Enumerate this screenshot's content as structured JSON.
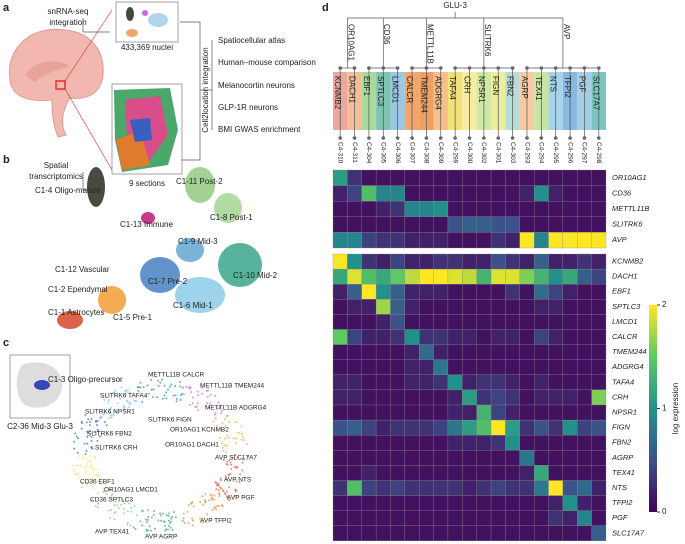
{
  "panel_labels": [
    "a",
    "b",
    "c",
    "d"
  ],
  "panel_a": {
    "snrna_label": [
      "snRNA-seq",
      "integration"
    ],
    "nuclei": "433,369 nuclei",
    "spatial_label": [
      "Spatial",
      "transcriptomics"
    ],
    "sections": "9 sections",
    "integration": "Cell2location integration",
    "outputs": [
      "Spatiocellular atlas",
      "Human–mouse comparison",
      "Melanocortin neurons",
      "GLP-1R neurons",
      "BMI GWAS enrichment"
    ]
  },
  "panel_b": {
    "clusters": [
      "C1-4 Oligo-mature",
      "C1-11 Post-2",
      "C1-13 Immune",
      "C1-8 Post-1",
      "C1-12 Vascular",
      "C1-9 Mid-3",
      "C1-2 Ependymal",
      "C1-10 Mid-2",
      "C1-1 Astrocytes",
      "C1-7 Pre-2",
      "C1-6 Mid-1",
      "C1-5 Pre-1",
      "C1-3 Oligo-precursor"
    ]
  },
  "panel_c": {
    "inset": "C2-36 Mid-3 Glu-3",
    "clusters": [
      "METTL11B CALCR",
      "SLITRK6 TAFA4",
      "METTL11B TMEM244",
      "METTL11B ADGRG4",
      "SLITRK6 NPSR1",
      "SLITRK6 FIGN",
      "OR10AG1 KCNMB2",
      "SLITRK6 FBN2",
      "SLITRK6 CRH",
      "OR10AG1 DACH1",
      "AVP SLC17A7",
      "CD36 EBF1",
      "OR10AG1 LMCD1",
      "CD36 SPTLC3",
      "AVP NTS",
      "AVP PGF",
      "AVP TFPI2",
      "AVP TEX41",
      "AVP AGRP"
    ]
  },
  "chart_data": {
    "type": "heatmap",
    "root": "GLU-3",
    "branches": [
      {
        "name": "OR10AG1",
        "leaves": [
          {
            "name": "KCNMB2",
            "id": "C4-310",
            "color": "#eba89e"
          },
          {
            "name": "DACH1",
            "id": "C4-311",
            "color": "#f4bd9a"
          }
        ]
      },
      {
        "name": "CD36",
        "leaves": [
          {
            "name": "EBF1",
            "id": "C4-304",
            "color": "#a9d99b"
          },
          {
            "name": "SPTLC3",
            "id": "C4-305",
            "color": "#7fc4b0"
          },
          {
            "name": "LMCD1",
            "id": "C4-306",
            "color": "#9cc7e3"
          }
        ]
      },
      {
        "name": "METTL11B",
        "leaves": [
          {
            "name": "CALCR",
            "id": "C4-307",
            "color": "#f3a66a"
          },
          {
            "name": "TMEM244",
            "id": "C4-308",
            "color": "#ee9f62"
          },
          {
            "name": "ADGRG4",
            "id": "C4-309",
            "color": "#f6c08c"
          }
        ]
      },
      {
        "name": "SLITRK6",
        "leaves": [
          {
            "name": "TAFA4",
            "id": "C4-299",
            "color": "#f2e27a"
          },
          {
            "name": "CRH",
            "id": "C4-300",
            "color": "#f7eca0"
          },
          {
            "name": "NPSR1",
            "id": "C4-302",
            "color": "#cfe8a6"
          },
          {
            "name": "FIGN",
            "id": "C4-301",
            "color": "#ecee9c"
          },
          {
            "name": "FBN2",
            "id": "C4-303",
            "color": "#b8dcd8"
          }
        ]
      },
      {
        "name": "AVP",
        "leaves": [
          {
            "name": "AGRP",
            "id": "C4-293",
            "color": "#f8c9a4"
          },
          {
            "name": "TEX41",
            "id": "C4-294",
            "color": "#c8e4a4"
          },
          {
            "name": "NTS",
            "id": "C4-295",
            "color": "#a8d4ea"
          },
          {
            "name": "TFPI2",
            "id": "C4-296",
            "color": "#8ab8e0"
          },
          {
            "name": "PGF",
            "id": "C4-297",
            "color": "#a6cde6"
          },
          {
            "name": "SLC17A7",
            "id": "C4-298",
            "color": "#7cc4c0"
          }
        ]
      }
    ],
    "row_groups": [
      {
        "rows": [
          "OR10AG1",
          "CD36",
          "METTL11B",
          "SLITRK6",
          "AVP"
        ],
        "values": [
          [
            1.1,
            0.3,
            0.1,
            0.1,
            0.1,
            0.1,
            0.1,
            0.1,
            0.1,
            0.1,
            0.1,
            0.1,
            0.1,
            0.1,
            0.1,
            0.1,
            0.1,
            0.1,
            0.1
          ],
          [
            0.2,
            0.4,
            1.4,
            0.9,
            0.9,
            0.1,
            0.1,
            0.1,
            0.1,
            0.1,
            0.1,
            0.1,
            0.1,
            0.2,
            1.0,
            0.2,
            0.1,
            0.1,
            0.1
          ],
          [
            0.1,
            0.1,
            0.1,
            0.2,
            0.3,
            0.9,
            0.9,
            1.0,
            0.1,
            0.1,
            0.1,
            0.1,
            0.1,
            0.1,
            0.1,
            0.1,
            0.1,
            0.1,
            0.1
          ],
          [
            0.1,
            0.1,
            0.1,
            0.1,
            0.1,
            0.1,
            0.1,
            0.1,
            0.5,
            0.6,
            0.6,
            0.5,
            0.5,
            0.1,
            0.1,
            0.1,
            0.1,
            0.1,
            0.1
          ],
          [
            0.9,
            0.9,
            0.4,
            0.3,
            0.3,
            0.2,
            0.2,
            0.2,
            0.1,
            0.1,
            0.1,
            0.3,
            0.2,
            2.0,
            0.9,
            2.0,
            2.0,
            2.0,
            2.0
          ]
        ]
      },
      {
        "rows": [
          "KCNMB2",
          "DACH1",
          "EBF1",
          "SPTLC3",
          "LMCD1",
          "CALCR",
          "TMEM244",
          "ADGRG4",
          "TAFA4",
          "CRH",
          "NPSR1",
          "FIGN",
          "FBN2",
          "AGRP",
          "TEX41",
          "NTS",
          "TFPI2",
          "PGF",
          "SLC17A7"
        ],
        "values": [
          [
            2.0,
            1.0,
            0.3,
            0.2,
            0.4,
            0.2,
            0.2,
            0.3,
            0.3,
            0.2,
            0.2,
            0.5,
            0.3,
            0.2,
            0.6,
            0.2,
            0.2,
            0.3,
            0.2
          ],
          [
            1.2,
            1.9,
            1.4,
            1.2,
            1.5,
            1.8,
            2.0,
            2.0,
            1.9,
            1.8,
            1.3,
            1.9,
            1.9,
            1.6,
            1.3,
            1.0,
            1.2,
            0.6,
            0.4
          ],
          [
            0.2,
            0.6,
            2.0,
            1.0,
            0.6,
            0.2,
            0.2,
            0.2,
            0.1,
            0.1,
            0.1,
            0.1,
            0.3,
            0.1,
            0.7,
            0.4,
            0.2,
            0.1,
            0.1
          ],
          [
            0.1,
            0.2,
            0.2,
            1.7,
            0.6,
            0.2,
            0.1,
            0.1,
            0.1,
            0.1,
            0.1,
            0.1,
            0.1,
            0.1,
            0.2,
            0.2,
            0.1,
            0.1,
            0.1
          ],
          [
            0.1,
            0.1,
            0.1,
            0.2,
            0.5,
            0.1,
            0.1,
            0.1,
            0.1,
            0.1,
            0.1,
            0.1,
            0.1,
            0.1,
            0.1,
            0.1,
            0.1,
            0.1,
            0.1
          ],
          [
            1.5,
            0.4,
            0.2,
            0.2,
            0.3,
            1.0,
            0.3,
            0.3,
            0.2,
            0.2,
            0.1,
            0.2,
            0.2,
            0.1,
            0.4,
            0.2,
            0.1,
            0.1,
            0.1
          ],
          [
            0.1,
            0.1,
            0.1,
            0.1,
            0.1,
            0.2,
            0.7,
            0.2,
            0.1,
            0.1,
            0.1,
            0.1,
            0.1,
            0.1,
            0.1,
            0.1,
            0.1,
            0.1,
            0.1
          ],
          [
            0.1,
            0.1,
            0.1,
            0.1,
            0.1,
            0.2,
            0.2,
            0.8,
            0.1,
            0.1,
            0.1,
            0.1,
            0.1,
            0.1,
            0.1,
            0.1,
            0.1,
            0.1,
            0.1
          ],
          [
            0.2,
            0.2,
            0.1,
            0.1,
            0.1,
            0.2,
            0.2,
            0.3,
            1.0,
            0.2,
            0.3,
            0.3,
            0.2,
            0.1,
            0.2,
            0.1,
            0.1,
            0.1,
            0.1
          ],
          [
            0.2,
            0.2,
            0.1,
            0.1,
            0.1,
            0.1,
            0.1,
            0.1,
            0.2,
            1.1,
            0.3,
            0.4,
            0.3,
            0.1,
            0.2,
            0.2,
            0.2,
            0.1,
            1.6
          ],
          [
            0.1,
            0.1,
            0.1,
            0.1,
            0.1,
            0.1,
            0.1,
            0.1,
            0.2,
            0.2,
            1.3,
            0.4,
            0.2,
            0.1,
            0.1,
            0.1,
            0.1,
            0.1,
            0.1
          ],
          [
            0.5,
            0.6,
            0.4,
            0.2,
            0.3,
            0.3,
            0.3,
            0.4,
            0.8,
            1.1,
            1.4,
            2.0,
            1.1,
            0.3,
            0.5,
            0.3,
            1.0,
            0.4,
            0.5
          ],
          [
            0.1,
            0.1,
            0.1,
            0.1,
            0.1,
            0.1,
            0.1,
            0.1,
            0.2,
            0.2,
            0.2,
            0.3,
            1.0,
            0.1,
            0.1,
            0.1,
            0.1,
            0.1,
            0.1
          ],
          [
            0.1,
            0.1,
            0.1,
            0.1,
            0.1,
            0.1,
            0.1,
            0.1,
            0.1,
            0.1,
            0.1,
            0.1,
            0.1,
            0.8,
            0.1,
            0.1,
            0.1,
            0.1,
            0.1
          ],
          [
            0.1,
            0.1,
            0.2,
            0.1,
            0.1,
            0.1,
            0.1,
            0.1,
            0.1,
            0.1,
            0.1,
            0.1,
            0.1,
            0.2,
            1.2,
            0.1,
            0.1,
            0.1,
            0.1
          ],
          [
            0.3,
            1.4,
            0.4,
            0.3,
            0.4,
            0.3,
            0.3,
            0.3,
            0.3,
            0.2,
            0.3,
            0.4,
            0.3,
            0.3,
            0.8,
            2.0,
            0.5,
            0.7,
            0.2
          ],
          [
            0.1,
            0.1,
            0.1,
            0.1,
            0.1,
            0.1,
            0.1,
            0.1,
            0.1,
            0.1,
            0.1,
            0.1,
            0.1,
            0.1,
            0.1,
            0.2,
            1.0,
            0.2,
            0.1
          ],
          [
            0.1,
            0.1,
            0.1,
            0.1,
            0.1,
            0.1,
            0.1,
            0.1,
            0.1,
            0.1,
            0.1,
            0.1,
            0.1,
            0.1,
            0.1,
            0.3,
            0.2,
            0.9,
            0.1
          ],
          [
            0.1,
            0.1,
            0.1,
            0.1,
            0.1,
            0.1,
            0.1,
            0.1,
            0.1,
            0.1,
            0.1,
            0.1,
            0.1,
            0.1,
            0.1,
            0.1,
            0.1,
            0.1,
            0.6
          ]
        ]
      }
    ],
    "colormap": [
      "#440154",
      "#3b528b",
      "#21918c",
      "#5ec962",
      "#fde725"
    ],
    "colorbar": {
      "label": "log expression",
      "lim": [
        0,
        2
      ],
      "ticks": [
        0,
        1,
        2
      ]
    }
  }
}
